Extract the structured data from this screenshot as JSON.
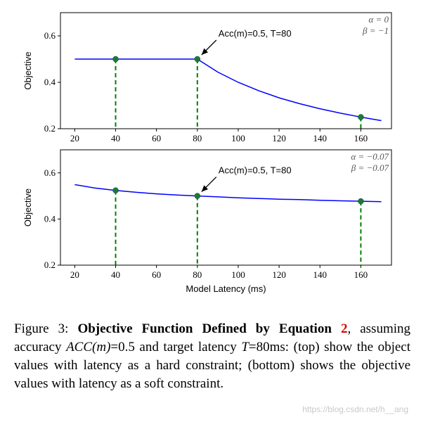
{
  "chart_data": [
    {
      "type": "line",
      "params": [
        "α = 0",
        "β = −1"
      ],
      "ylabel": "Objective",
      "xlabel": "",
      "xlim": [
        13,
        175
      ],
      "ylim": [
        0.2,
        0.7
      ],
      "xticks": [
        20,
        40,
        60,
        80,
        100,
        120,
        140,
        160
      ],
      "yticks": [
        0.2,
        0.4,
        0.6
      ],
      "series": [
        {
          "color": "#0000ff",
          "x": [
            20,
            30,
            40,
            50,
            60,
            70,
            80,
            90,
            100,
            110,
            120,
            130,
            140,
            150,
            160,
            170
          ],
          "y": [
            0.5,
            0.5,
            0.5,
            0.5,
            0.5,
            0.5,
            0.5,
            0.444,
            0.4,
            0.364,
            0.333,
            0.308,
            0.286,
            0.267,
            0.25,
            0.235
          ]
        }
      ],
      "points": [
        {
          "x": 40,
          "y": 0.5
        },
        {
          "x": 80,
          "y": 0.5
        },
        {
          "x": 160,
          "y": 0.25
        }
      ],
      "annotation": {
        "text": "Acc(m)=0.5, T=80",
        "x": 80,
        "y": 0.5
      },
      "grid": false,
      "colors": {
        "line": "#0000ff",
        "marker": "#1a7a3a",
        "stem": "#008000"
      }
    },
    {
      "type": "line",
      "params": [
        "α = −0.07",
        "β = −0.07"
      ],
      "ylabel": "Objective",
      "xlabel": "Model Latency (ms)",
      "xlim": [
        13,
        175
      ],
      "ylim": [
        0.2,
        0.7
      ],
      "xticks": [
        20,
        40,
        60,
        80,
        100,
        120,
        140,
        160
      ],
      "yticks": [
        0.2,
        0.4,
        0.6
      ],
      "series": [
        {
          "color": "#0000ff",
          "x": [
            20,
            30,
            40,
            50,
            60,
            70,
            80,
            90,
            100,
            110,
            120,
            130,
            140,
            150,
            160,
            170
          ],
          "y": [
            0.549,
            0.534,
            0.524,
            0.516,
            0.509,
            0.504,
            0.5,
            0.496,
            0.492,
            0.489,
            0.486,
            0.484,
            0.481,
            0.479,
            0.477,
            0.475
          ]
        }
      ],
      "points": [
        {
          "x": 40,
          "y": 0.524
        },
        {
          "x": 80,
          "y": 0.5
        },
        {
          "x": 160,
          "y": 0.477
        }
      ],
      "annotation": {
        "text": "Acc(m)=0.5, T=80",
        "x": 80,
        "y": 0.5
      },
      "grid": false,
      "colors": {
        "line": "#0000ff",
        "marker": "#1a7a3a",
        "stem": "#008000"
      }
    }
  ],
  "caption": {
    "prefix": "Figure 3:  ",
    "bold_title": "Objective Function Defined by Equation",
    "ref": "2",
    "part1": ", assuming accuracy ",
    "acc_math": "ACC(m)",
    "part2": "=0.5 and target latency ",
    "t_math": "T",
    "part3": "=80ms: (top) show the object values with latency as a hard constraint; (bottom) shows the objective values with latency as a soft constraint."
  },
  "watermark": "https://blog.csdn.net/h__ang"
}
